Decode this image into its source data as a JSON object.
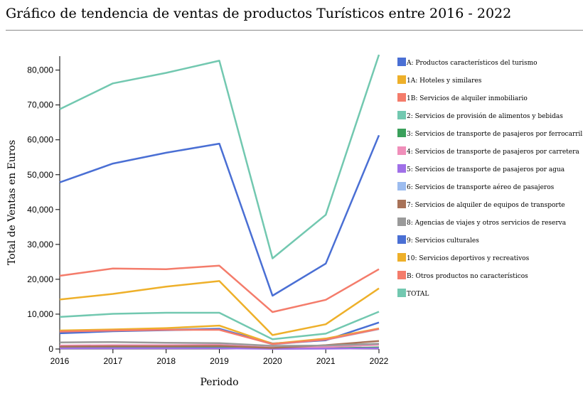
{
  "title": "Gráfico de tendencia de ventas de productos Turísticos entre 2016 - 2022",
  "chart_data": {
    "type": "line",
    "title": "Gráfico de tendencia de ventas de productos Turísticos entre 2016 - 2022",
    "xlabel": "Periodo",
    "ylabel": "Total de Ventas en Euros",
    "x": [
      "2016",
      "2017",
      "2018",
      "2019",
      "2020",
      "2021",
      "2022"
    ],
    "ylim": [
      0,
      84000
    ],
    "yticks": [
      "0",
      "10,000",
      "20,000",
      "30,000",
      "40,000",
      "50,000",
      "60,000",
      "70,000",
      "80,000"
    ],
    "grid": false,
    "legend_position": "right",
    "series": [
      {
        "name": "A: Productos característicos del turismo",
        "color": "#4a6fd4",
        "values": [
          47800,
          53200,
          56300,
          58900,
          15300,
          24500,
          61300
        ]
      },
      {
        "name": "1A: Hoteles y similares",
        "color": "#eeb02a",
        "values": [
          14200,
          15800,
          17900,
          19500,
          4000,
          7100,
          17400
        ]
      },
      {
        "name": "1B: Servicios de alquiler inmobiliario",
        "color": "#f47c6b",
        "values": [
          21000,
          23100,
          22900,
          23900,
          10600,
          14100,
          22900
        ]
      },
      {
        "name": "2: Servicios de provisión de alimentos y bebidas",
        "color": "#72c8b0",
        "values": [
          9200,
          10100,
          10400,
          10400,
          2800,
          4400,
          10700
        ]
      },
      {
        "name": "3: Servicios de transporte de pasajeros por ferrocarril",
        "color": "#3aa05b",
        "values": [
          400,
          450,
          450,
          450,
          100,
          200,
          450
        ]
      },
      {
        "name": "4: Servicios de transporte de pasajeros por carretera",
        "color": "#f08fba",
        "values": [
          1000,
          1100,
          1100,
          1200,
          400,
          600,
          1200
        ]
      },
      {
        "name": "5: Servicios de transporte de pasajeros por agua",
        "color": "#a070e8",
        "values": [
          200,
          200,
          200,
          200,
          50,
          100,
          200
        ]
      },
      {
        "name": "6: Servicios de transporte aéreo de pasajeros",
        "color": "#9cbcef",
        "values": [
          4600,
          5200,
          5600,
          5900,
          1300,
          2600,
          5700
        ]
      },
      {
        "name": "7: Servicios de alquiler de equipos de transporte",
        "color": "#a87258",
        "values": [
          700,
          800,
          800,
          900,
          300,
          1100,
          2300
        ]
      },
      {
        "name": "8: Agencias de viajes y otros servicios de reserva",
        "color": "#9a9a9a",
        "values": [
          1900,
          2000,
          1800,
          1700,
          900,
          1000,
          1500
        ]
      },
      {
        "name": "9: Servicios culturales",
        "color": "#4a6fd4",
        "values": [
          4500,
          5100,
          5400,
          5700,
          1600,
          2500,
          7600
        ]
      },
      {
        "name": "10: Servicios deportivos y recreativos",
        "color": "#eeb02a",
        "values": [
          5300,
          5600,
          6000,
          6700,
          1500,
          3000,
          5900
        ]
      },
      {
        "name": "B: Otros productos no característicos",
        "color": "#f47c6b",
        "values": [
          5000,
          5300,
          5500,
          5500,
          1400,
          2700,
          5800
        ]
      },
      {
        "name": "TOTAL",
        "color": "#72c8b0",
        "values": [
          68800,
          76200,
          79200,
          82700,
          26000,
          38500,
          84400
        ]
      }
    ]
  }
}
